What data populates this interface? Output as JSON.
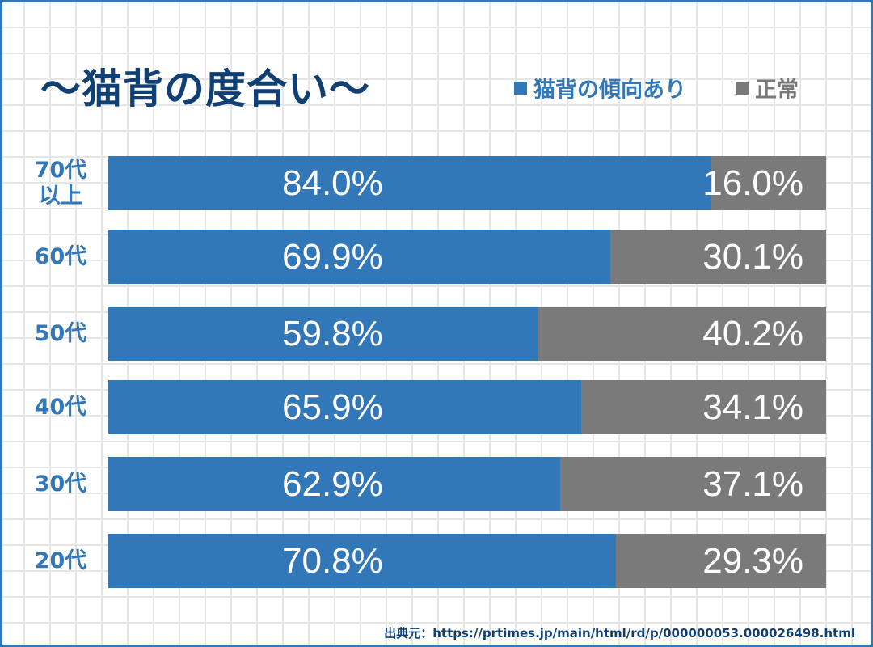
{
  "chart_data": {
    "type": "bar",
    "stacked": true,
    "orientation": "horizontal",
    "title": "〜猫背の度合い〜",
    "legend_position": "top-right",
    "categories": [
      [
        "70代",
        "以上"
      ],
      [
        "60代"
      ],
      [
        "50代"
      ],
      [
        "40代"
      ],
      [
        "30代"
      ],
      [
        "20代"
      ]
    ],
    "series": [
      {
        "name": "猫背の傾向あり",
        "color": "#3277b7",
        "values": [
          84.0,
          69.9,
          59.8,
          65.9,
          62.9,
          70.8
        ],
        "labels": [
          "84.0%",
          "69.9%",
          "59.8%",
          "65.9%",
          "62.9%",
          "70.8%"
        ]
      },
      {
        "name": "正常",
        "color": "#7a7a7a",
        "values": [
          16.0,
          30.1,
          40.2,
          34.1,
          37.1,
          29.3
        ],
        "labels": [
          "16.0%",
          "30.1%",
          "40.2%",
          "34.1%",
          "37.1%",
          "29.3%"
        ]
      }
    ],
    "xlim": [
      0,
      100
    ],
    "source": "出典元：https://prtimes.jp/main/html/rd/p/000000053.000026498.html"
  }
}
